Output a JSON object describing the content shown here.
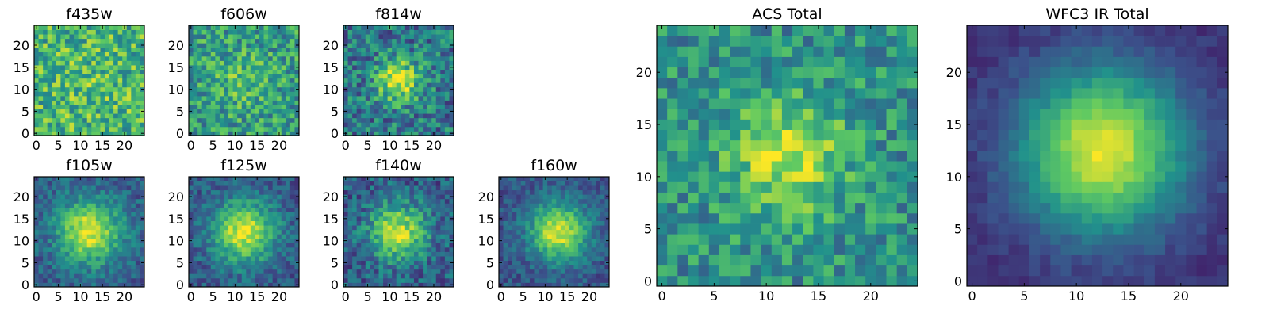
{
  "figure": {
    "colormap": [
      "#440154",
      "#3b528b",
      "#21918c",
      "#5ec962",
      "#fde725"
    ],
    "grid": false,
    "legend": false
  },
  "chart_data": [
    {
      "type": "heatmap",
      "title": "f435w",
      "grid_size": 25,
      "xlim": [
        0,
        24
      ],
      "ylim": [
        0,
        24
      ],
      "xticks": [
        0,
        5,
        10,
        15,
        20
      ],
      "yticks": [
        0,
        5,
        10,
        15,
        20
      ],
      "source": {
        "center": [
          12,
          12
        ],
        "sigma": 5.0,
        "peak": 0.05,
        "base": 0.66,
        "noise": 0.26,
        "seed": 11
      }
    },
    {
      "type": "heatmap",
      "title": "f606w",
      "grid_size": 25,
      "xlim": [
        0,
        24
      ],
      "ylim": [
        0,
        24
      ],
      "xticks": [
        0,
        5,
        10,
        15,
        20
      ],
      "yticks": [
        0,
        5,
        10,
        15,
        20
      ],
      "source": {
        "center": [
          12,
          12
        ],
        "sigma": 4.5,
        "peak": 0.15,
        "base": 0.55,
        "noise": 0.24,
        "seed": 23
      }
    },
    {
      "type": "heatmap",
      "title": "f814w",
      "grid_size": 25,
      "xlim": [
        0,
        24
      ],
      "ylim": [
        0,
        24
      ],
      "xticks": [
        0,
        5,
        10,
        15,
        20
      ],
      "yticks": [
        0,
        5,
        10,
        15,
        20
      ],
      "source": {
        "center": [
          12,
          12
        ],
        "sigma": 3.5,
        "peak": 0.55,
        "base": 0.4,
        "noise": 0.24,
        "seed": 37
      }
    },
    {
      "type": "heatmap",
      "title": "f105w",
      "grid_size": 25,
      "xlim": [
        0,
        24
      ],
      "ylim": [
        0,
        24
      ],
      "xticks": [
        0,
        5,
        10,
        15,
        20
      ],
      "yticks": [
        0,
        5,
        10,
        15,
        20
      ],
      "source": {
        "center": [
          12,
          12
        ],
        "sigma": 5.0,
        "peak": 0.65,
        "base": 0.3,
        "noise": 0.14,
        "seed": 41
      }
    },
    {
      "type": "heatmap",
      "title": "f125w",
      "grid_size": 25,
      "xlim": [
        0,
        24
      ],
      "ylim": [
        0,
        24
      ],
      "xticks": [
        0,
        5,
        10,
        15,
        20
      ],
      "yticks": [
        0,
        5,
        10,
        15,
        20
      ],
      "source": {
        "center": [
          12,
          12
        ],
        "sigma": 5.0,
        "peak": 0.65,
        "base": 0.28,
        "noise": 0.14,
        "seed": 53
      }
    },
    {
      "type": "heatmap",
      "title": "f140w",
      "grid_size": 25,
      "xlim": [
        0,
        24
      ],
      "ylim": [
        0,
        24
      ],
      "xticks": [
        0,
        5,
        10,
        15,
        20
      ],
      "yticks": [
        0,
        5,
        10,
        15,
        20
      ],
      "source": {
        "center": [
          12,
          12
        ],
        "sigma": 4.5,
        "peak": 0.6,
        "base": 0.3,
        "noise": 0.18,
        "seed": 67
      }
    },
    {
      "type": "heatmap",
      "title": "f160w",
      "grid_size": 25,
      "xlim": [
        0,
        24
      ],
      "ylim": [
        0,
        24
      ],
      "xticks": [
        0,
        5,
        10,
        15,
        20
      ],
      "yticks": [
        0,
        5,
        10,
        15,
        20
      ],
      "source": {
        "center": [
          13,
          12
        ],
        "sigma": 4.5,
        "peak": 0.68,
        "base": 0.27,
        "noise": 0.12,
        "seed": 79
      }
    },
    {
      "type": "heatmap",
      "title": "ACS Total",
      "grid_size": 25,
      "xlim": [
        0,
        24
      ],
      "ylim": [
        0,
        24
      ],
      "xticks": [
        0,
        5,
        10,
        15,
        20
      ],
      "yticks": [
        0,
        5,
        10,
        15,
        20
      ],
      "source": {
        "center": [
          12,
          12
        ],
        "sigma": 4.0,
        "peak": 0.4,
        "base": 0.5,
        "noise": 0.2,
        "seed": 97
      }
    },
    {
      "type": "heatmap",
      "title": "WFC3 IR Total",
      "grid_size": 25,
      "xlim": [
        0,
        24
      ],
      "ylim": [
        0,
        24
      ],
      "xticks": [
        0,
        5,
        10,
        15,
        20
      ],
      "yticks": [
        0,
        5,
        10,
        15,
        20
      ],
      "source": {
        "center": [
          12.5,
          12.5
        ],
        "sigma": 5.5,
        "peak": 0.82,
        "base": 0.14,
        "noise": 0.05,
        "seed": 113
      }
    }
  ]
}
